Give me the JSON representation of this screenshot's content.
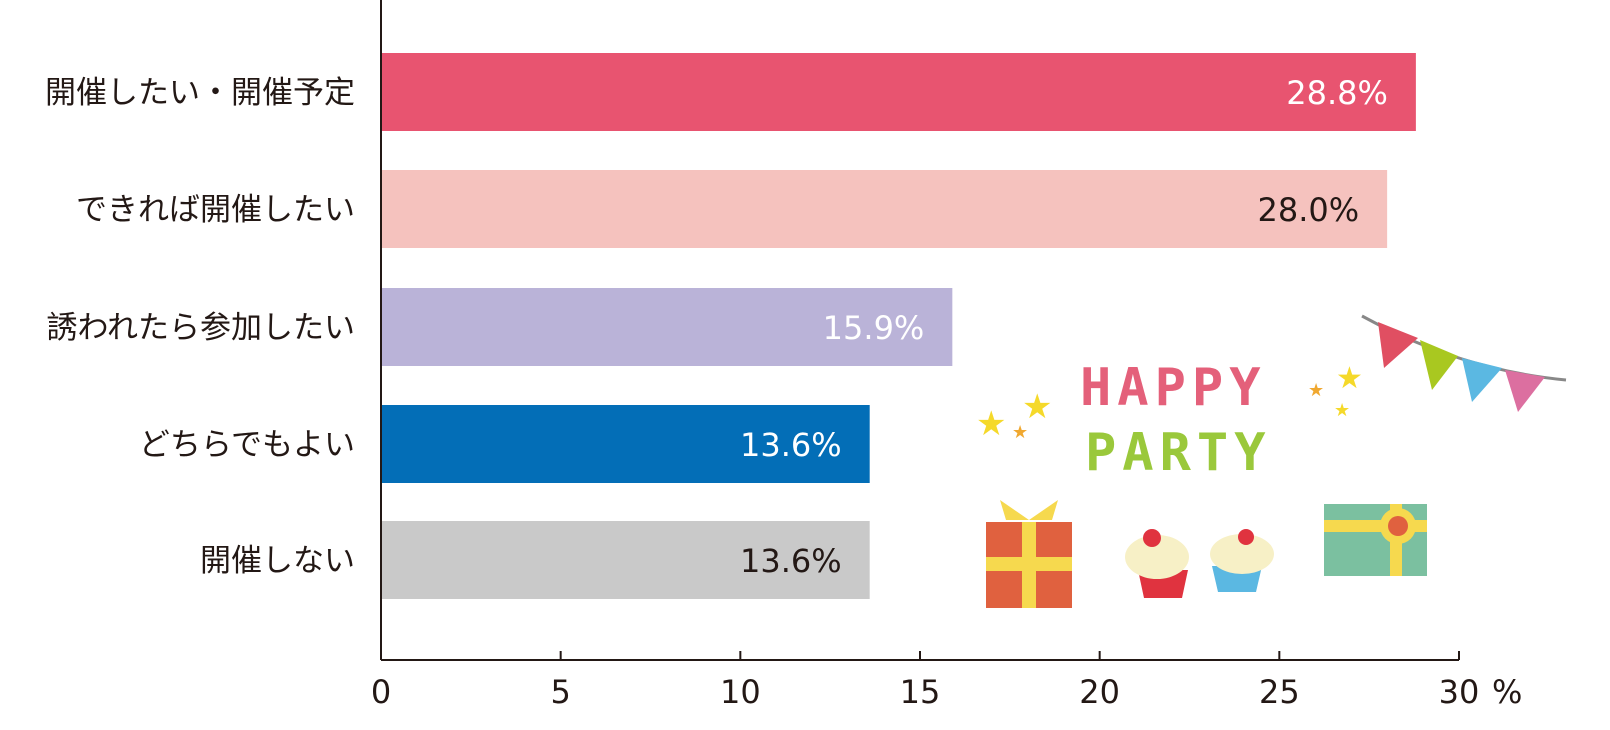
{
  "chart_data": {
    "type": "bar",
    "orientation": "horizontal",
    "categories": [
      "開催したい・開催予定",
      "できれば開催したい",
      "誘われたら参加したい",
      "どちらでもよい",
      "開催しない"
    ],
    "values": [
      28.8,
      28.0,
      15.9,
      13.6,
      13.6
    ],
    "value_labels": [
      "28.8%",
      "28.0%",
      "15.9%",
      "13.6%",
      "13.6%"
    ],
    "colors": [
      "#e85470",
      "#f5c2be",
      "#bab3d8",
      "#036eb7",
      "#c9c9c9"
    ],
    "label_colors": [
      "#ffffff",
      "#231815",
      "#ffffff",
      "#ffffff",
      "#231815"
    ],
    "xlim": [
      0,
      30
    ],
    "xticks": [
      0,
      5,
      10,
      15,
      20,
      25,
      30
    ],
    "xtick_labels": [
      "0",
      "5",
      "10",
      "15",
      "20",
      "25",
      "30"
    ],
    "xunit": "%",
    "title": "",
    "xlabel": "",
    "ylabel": "",
    "grid": false
  },
  "decoration": {
    "line1": "HAPPY",
    "line2": "PARTY"
  }
}
